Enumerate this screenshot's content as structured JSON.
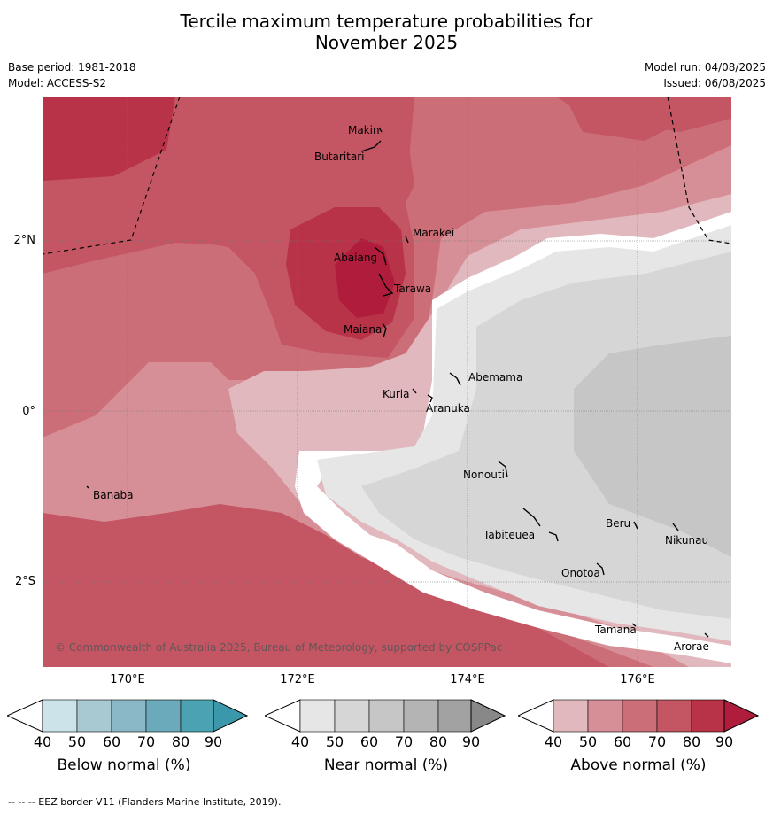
{
  "title_line1": "Tercile maximum temperature probabilities for",
  "title_line2": "November 2025",
  "base_period": "Base period: 1981-2018",
  "model": "Model: ACCESS-S2",
  "model_run": "Model run: 04/08/2025",
  "issued": "Issued: 06/08/2025",
  "copyright": "© Commonwealth of Australia 2025, Bureau of Meteorology, supported by COSPPac",
  "footer": "--  --  -- EEZ border V11 (Flanders Marine Institute, 2019).",
  "axes": {
    "lat_labels": [
      "2°N",
      "0°",
      "2°S"
    ],
    "lon_labels": [
      "170°E",
      "172°E",
      "174°E",
      "176°E"
    ]
  },
  "places": [
    "Makin",
    "Butaritari",
    "Marakei",
    "Abaiang",
    "Tarawa",
    "Maiana",
    "Abemama",
    "Kuria",
    "Aranuka",
    "Banaba",
    "Nonouti",
    "Tabiteuea",
    "Beru",
    "Nikunau",
    "Onotoa",
    "Tamana",
    "Arorae"
  ],
  "colorbars": [
    {
      "name": "Below normal (%)",
      "ticks": [
        "40",
        "50",
        "60",
        "70",
        "80",
        "90"
      ],
      "colors": [
        "#cce3ea",
        "#a8c8d2",
        "#8ab8c6",
        "#6aaabb",
        "#4aa2b3",
        "#3b98aa"
      ]
    },
    {
      "name": "Near normal (%)",
      "ticks": [
        "40",
        "50",
        "60",
        "70",
        "80",
        "90"
      ],
      "colors": [
        "#e6e6e6",
        "#d6d6d6",
        "#c6c6c6",
        "#b4b4b4",
        "#a2a2a2",
        "#888888"
      ]
    },
    {
      "name": "Above normal (%)",
      "ticks": [
        "40",
        "50",
        "60",
        "70",
        "80",
        "90"
      ],
      "colors": [
        "#e0b8bd",
        "#d78f97",
        "#cc6e78",
        "#c45563",
        "#b83248",
        "#b01c3c"
      ]
    }
  ]
}
